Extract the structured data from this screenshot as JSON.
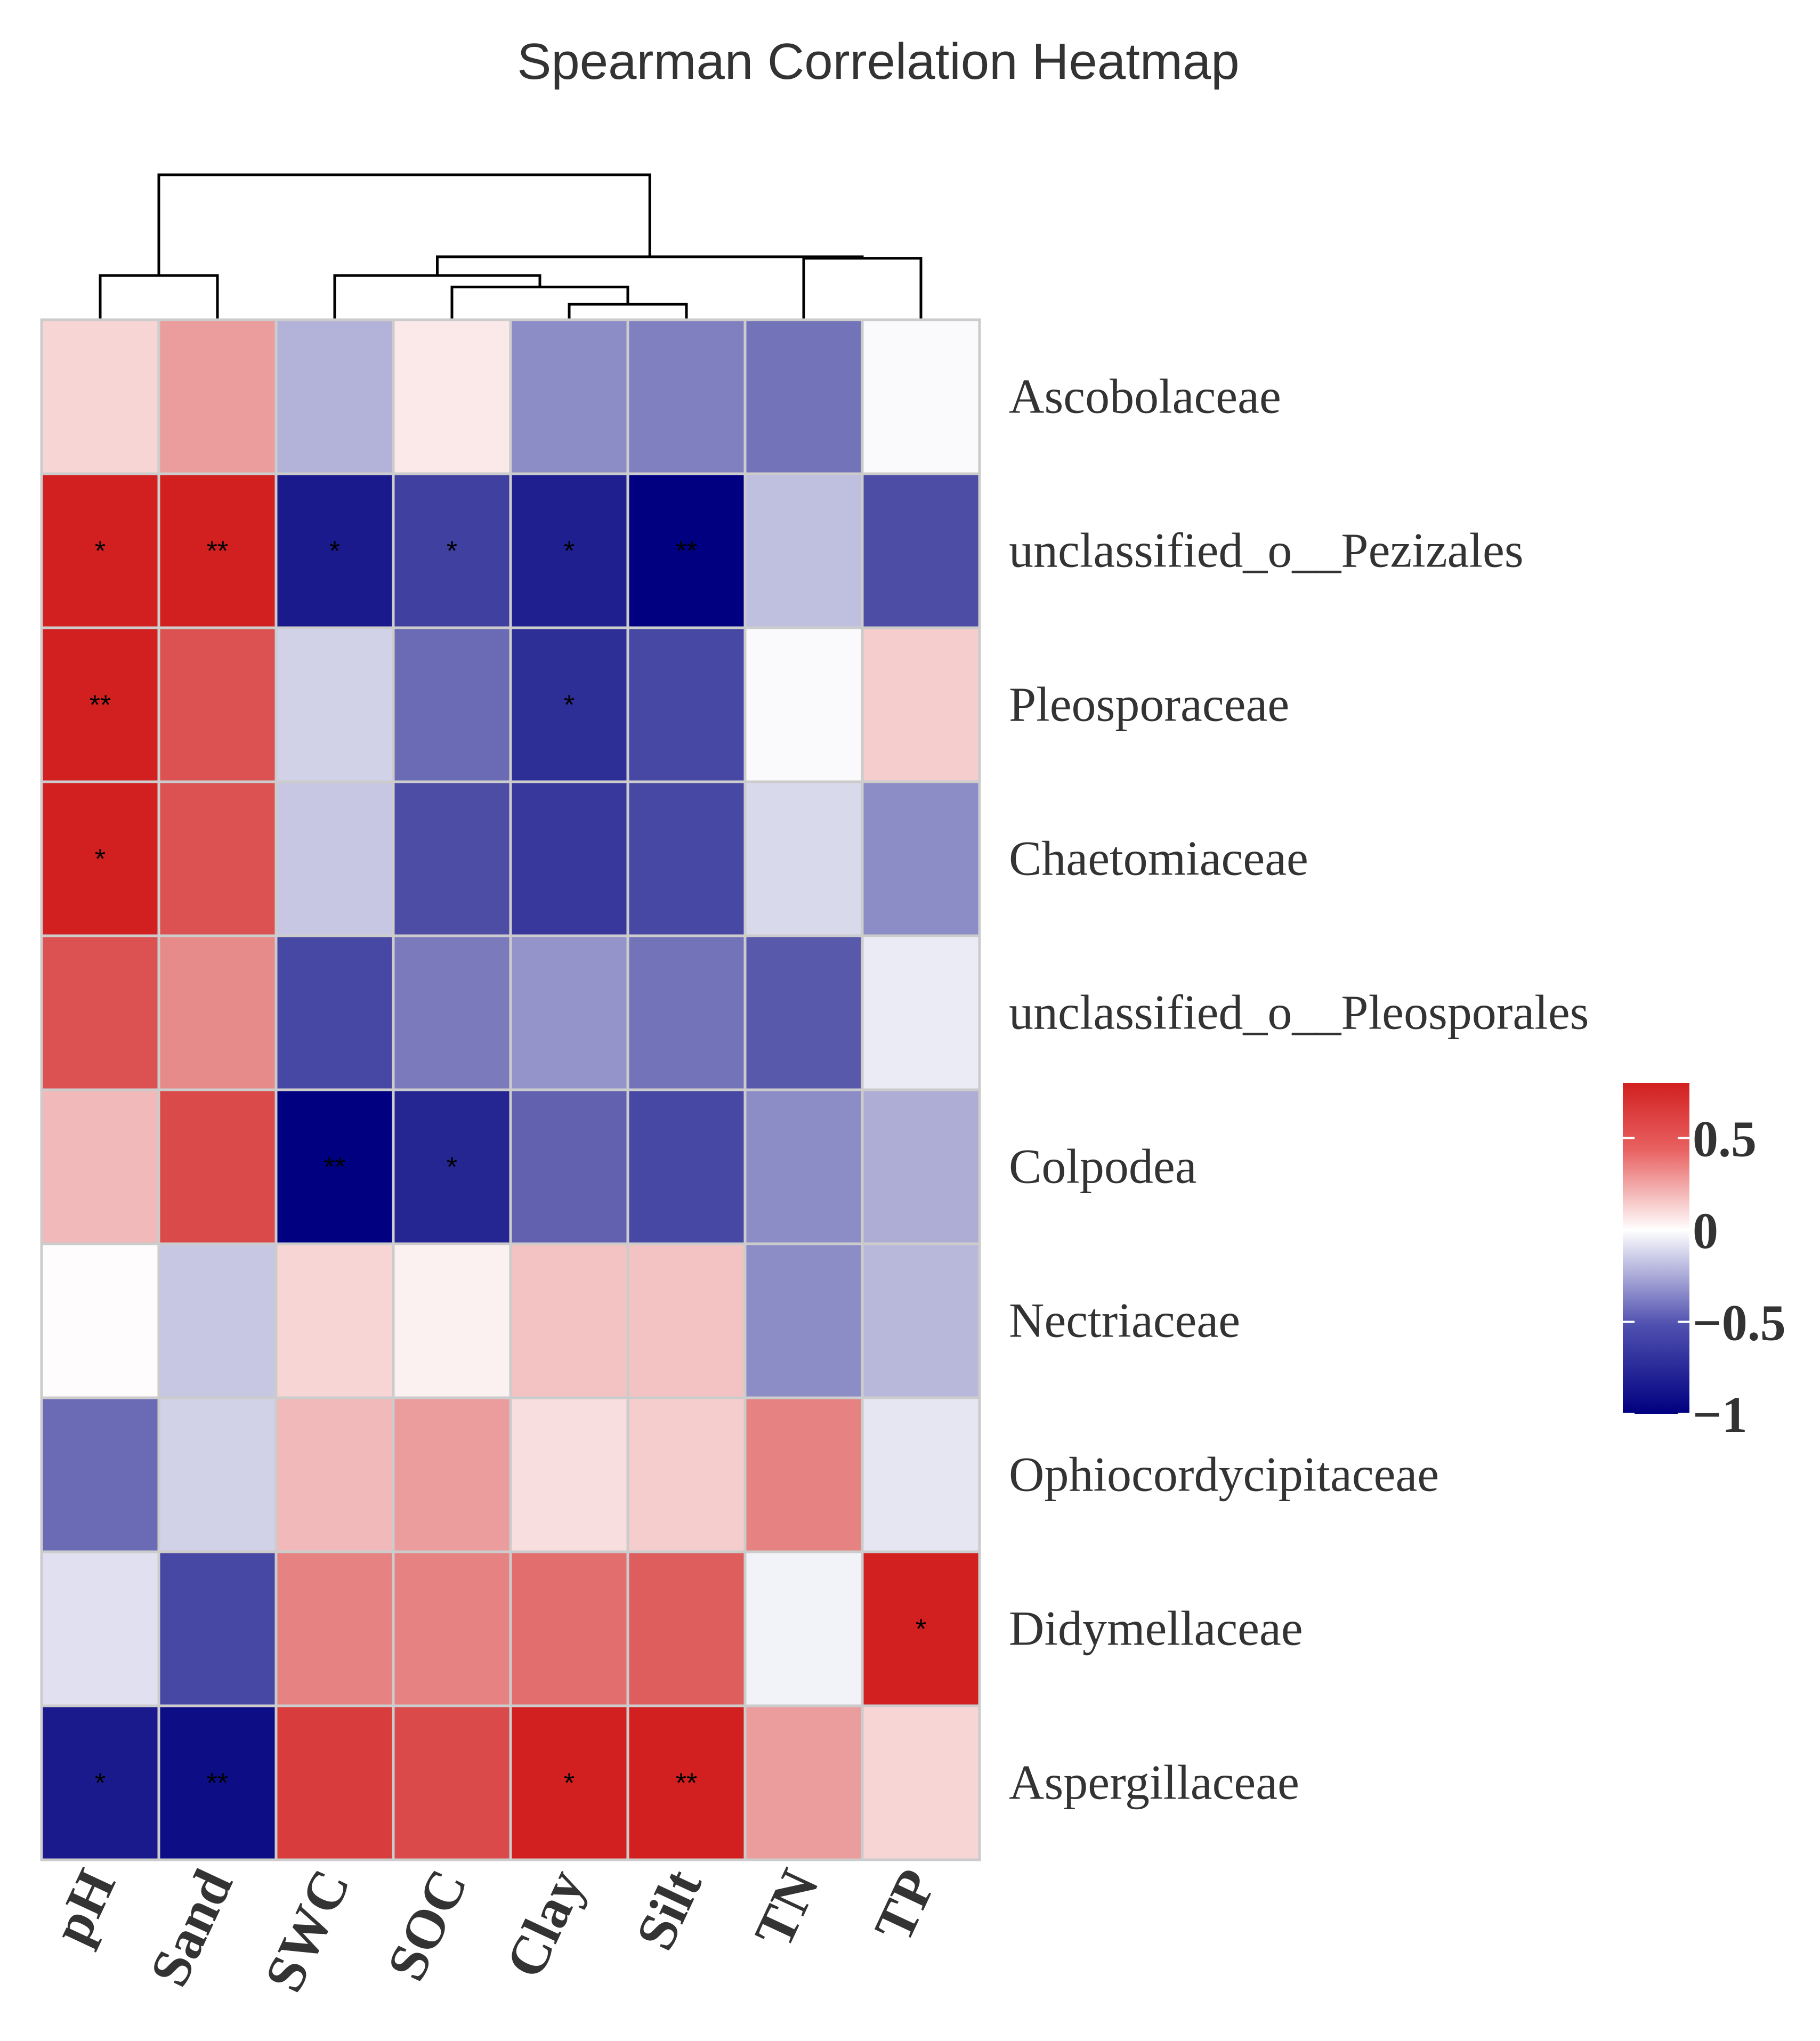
{
  "chart_data": {
    "type": "heatmap",
    "title": "Spearman Correlation Heatmap",
    "columns": [
      "pH",
      "Sand",
      "SWC",
      "SOC",
      "Clay",
      "Silt",
      "TN",
      "TP"
    ],
    "rows": [
      "Ascobolaceae",
      "unclassified_o__Pezizales",
      "Pleosporaceae",
      "Chaetomiaceae",
      "unclassified_o__Pleosporales",
      "Colpodea",
      "Nectriaceae",
      "Ophiocordycipitaceae",
      "Didymellaceae",
      "Aspergillaceae"
    ],
    "values": [
      [
        0.15,
        0.35,
        -0.3,
        0.08,
        -0.45,
        -0.5,
        -0.55,
        -0.02
      ],
      [
        0.8,
        0.92,
        -0.9,
        -0.75,
        -0.88,
        -1.0,
        -0.25,
        -0.7
      ],
      [
        0.82,
        0.62,
        -0.18,
        -0.58,
        -0.82,
        -0.72,
        -0.02,
        0.18
      ],
      [
        0.8,
        0.62,
        -0.22,
        -0.7,
        -0.78,
        -0.72,
        -0.15,
        -0.45
      ],
      [
        0.62,
        0.42,
        -0.72,
        -0.52,
        -0.42,
        -0.55,
        -0.65,
        -0.08
      ],
      [
        0.25,
        0.65,
        -1.0,
        -0.85,
        -0.62,
        -0.72,
        -0.45,
        -0.32
      ],
      [
        0.01,
        -0.22,
        0.15,
        0.05,
        0.22,
        0.22,
        -0.45,
        -0.28
      ],
      [
        -0.58,
        -0.18,
        0.25,
        0.35,
        0.12,
        0.18,
        0.45,
        -0.1
      ],
      [
        -0.12,
        -0.72,
        0.45,
        0.45,
        0.52,
        0.58,
        -0.05,
        0.82
      ],
      [
        -0.9,
        -0.95,
        0.7,
        0.65,
        0.85,
        0.9,
        0.35,
        0.15
      ]
    ],
    "significance": [
      [
        "",
        "",
        "",
        "",
        "",
        "",
        "",
        ""
      ],
      [
        "*",
        "**",
        "*",
        "*",
        "*",
        "**",
        "",
        ""
      ],
      [
        "**",
        "",
        "",
        "",
        "*",
        "",
        "",
        ""
      ],
      [
        "*",
        "",
        "",
        "",
        "",
        "",
        "",
        ""
      ],
      [
        "",
        "",
        "",
        "",
        "",
        "",
        "",
        ""
      ],
      [
        "",
        "",
        "**",
        "*",
        "",
        "",
        "",
        ""
      ],
      [
        "",
        "",
        "",
        "",
        "",
        "",
        "",
        ""
      ],
      [
        "",
        "",
        "",
        "",
        "",
        "",
        "",
        ""
      ],
      [
        "",
        "",
        "",
        "",
        "",
        "",
        "",
        "*"
      ],
      [
        "*",
        "**",
        "",
        "",
        "*",
        "**",
        "",
        ""
      ]
    ],
    "dendrogram": {
      "leaf_order": [
        "pH",
        "Sand",
        "SWC",
        "SOC",
        "Clay",
        "Silt",
        "TN",
        "TP"
      ],
      "merges": [
        {
          "left": "Clay",
          "right": "Silt",
          "height": 0.1
        },
        {
          "left": "SOC",
          "right": "Clay+Silt",
          "height": 0.22
        },
        {
          "left": "pH",
          "right": "Sand",
          "height": 0.3
        },
        {
          "left": "SWC",
          "right": "SOC+Clay+Silt",
          "height": 0.3
        },
        {
          "left": "TN",
          "right": "TP",
          "height": 0.42
        },
        {
          "left": "SWC+SOC+Clay+Silt",
          "right": "TN+TP",
          "height": 0.43
        },
        {
          "left": "pH+Sand",
          "right": "SWC+SOC+Clay+Silt+TN+TP",
          "height": 1.0
        }
      ]
    },
    "colorbar": {
      "range": [
        -1,
        0.8
      ],
      "ticks": [
        0.5,
        0,
        -0.5,
        -1
      ],
      "tick_labels": [
        "0.5",
        "0",
        "−0.5",
        "−1"
      ],
      "colors": {
        "low": "#000080",
        "mid": "#ffffff",
        "high": "#d22020"
      }
    }
  }
}
